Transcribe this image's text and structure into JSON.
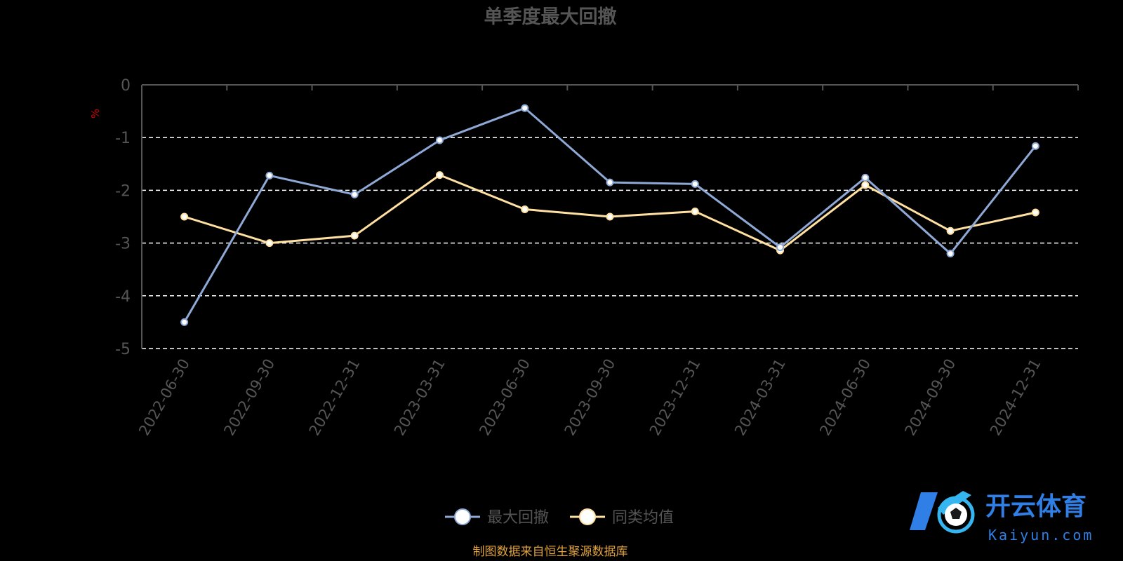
{
  "chart_data": {
    "type": "line",
    "title": "单季度最大回撤",
    "ylabel": "%",
    "ylim": [
      -5,
      0
    ],
    "yticks": [
      "0",
      "-1",
      "-2",
      "-3",
      "-4",
      "-5"
    ],
    "categories": [
      "2022-06-30",
      "2022-09-30",
      "2022-12-31",
      "2023-03-31",
      "2023-06-30",
      "2023-09-30",
      "2023-12-31",
      "2024-03-31",
      "2024-06-30",
      "2024-09-30",
      "2024-12-31"
    ],
    "series": [
      {
        "name": "最大回撤",
        "color": "#8fa9d6",
        "values": [
          -4.5,
          -1.72,
          -2.08,
          -1.05,
          -0.44,
          -1.85,
          -1.88,
          -3.08,
          -1.76,
          -3.2,
          -1.16
        ]
      },
      {
        "name": "同类均值",
        "color": "#ffe0a0",
        "values": [
          -2.5,
          -3.0,
          -2.86,
          -1.71,
          -2.36,
          -2.5,
          -2.4,
          -3.14,
          -1.9,
          -2.77,
          -2.42
        ]
      }
    ],
    "grid": true,
    "legend_position": "bottom-center",
    "source_note": "制图数据来自恒生聚源数据库"
  },
  "watermark": {
    "text_cn": "开云体育",
    "text_en": "Kaiyun.com"
  }
}
